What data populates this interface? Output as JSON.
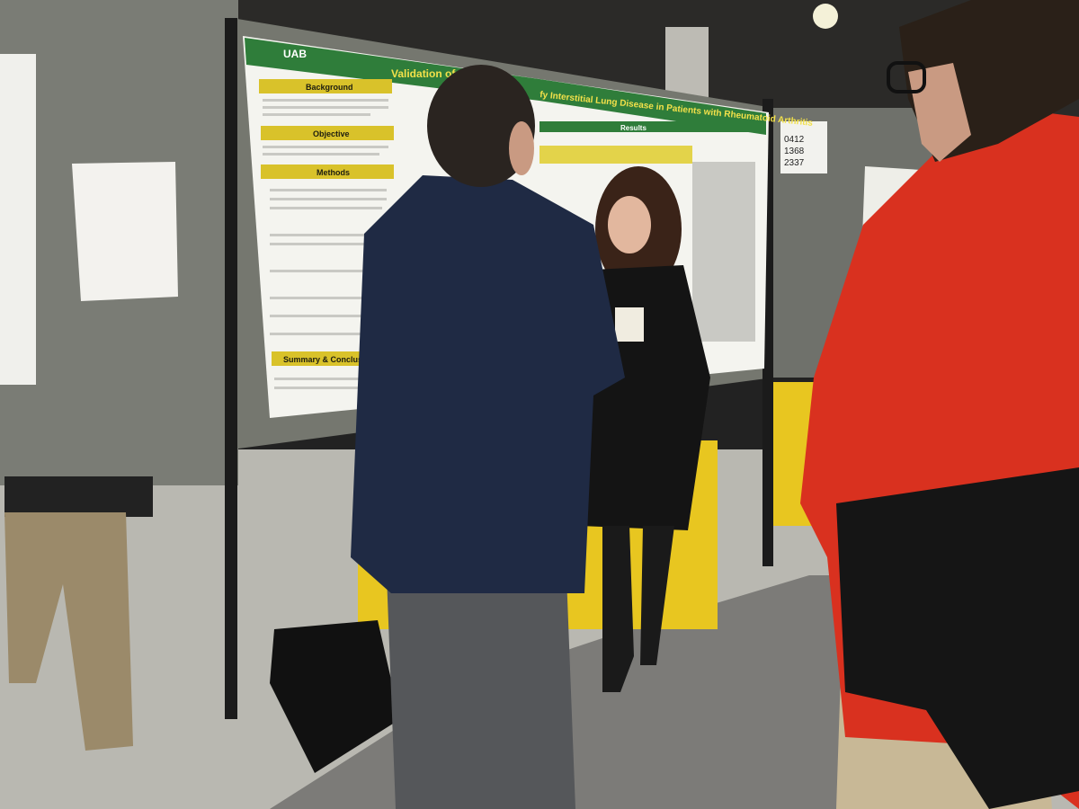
{
  "poster": {
    "logo": "UAB",
    "title_start": "Validation of",
    "title_end": "fy Interstitial Lung Disease in Patients with Rheumatoid Arthritis",
    "sections": [
      "Background",
      "Objective",
      "Methods",
      "Summary & Conclusion"
    ],
    "results_header": "Results"
  },
  "board_sign": [
    "0412",
    "1368",
    "2337"
  ]
}
